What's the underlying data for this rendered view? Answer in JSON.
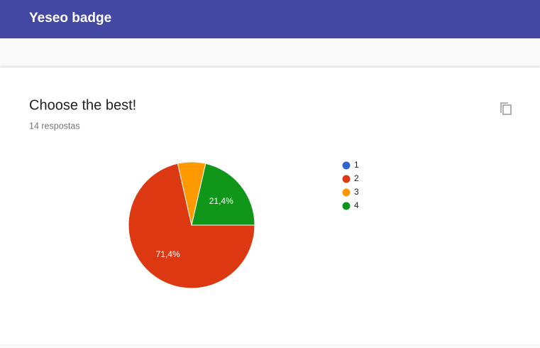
{
  "header": {
    "title": "Yeseo badge"
  },
  "chart_data": {
    "type": "pie",
    "title": "Choose the best!",
    "subtitle": "14 respostas",
    "categories": [
      "1",
      "2",
      "3",
      "4"
    ],
    "values": [
      0,
      71.4,
      7.1,
      21.4
    ],
    "value_labels": [
      null,
      "71,4%",
      null,
      "21,4%"
    ],
    "colors": [
      "#3366cc",
      "#dc3912",
      "#ff9900",
      "#109618"
    ],
    "legend": "right"
  }
}
